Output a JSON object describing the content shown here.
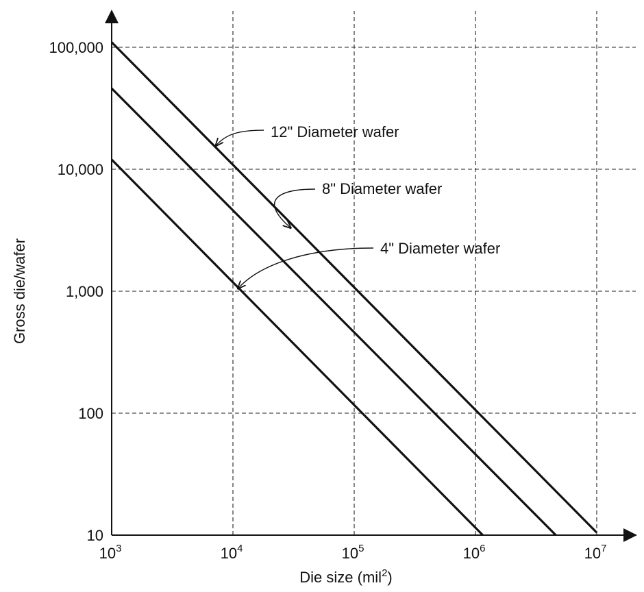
{
  "chart_data": {
    "type": "line",
    "x_scale": "log",
    "y_scale": "log",
    "xlabel_text": "Die size (mil",
    "xlabel_sup": "2",
    "xlabel_close": ")",
    "ylabel": "Gross die/wafer",
    "xlim": [
      1000,
      10000000
    ],
    "ylim": [
      10,
      100000
    ],
    "grid": true,
    "x_ticks": [
      {
        "base": "10",
        "exp": "3",
        "value": 1000
      },
      {
        "base": "10",
        "exp": "4",
        "value": 10000
      },
      {
        "base": "10",
        "exp": "5",
        "value": 100000
      },
      {
        "base": "10",
        "exp": "6",
        "value": 1000000
      },
      {
        "base": "10",
        "exp": "7",
        "value": 10000000
      }
    ],
    "y_ticks": [
      {
        "label": "10",
        "value": 10
      },
      {
        "label": "100",
        "value": 100
      },
      {
        "label": "1,000",
        "value": 1000
      },
      {
        "label": "10,000",
        "value": 10000
      },
      {
        "label": "100,000",
        "value": 100000
      }
    ],
    "series": [
      {
        "name": "12\" Diameter wafer",
        "x": [
          1000,
          10000000
        ],
        "y": [
          110000,
          10.5
        ],
        "label_at_x": 7200,
        "label_at_y": 15500
      },
      {
        "name": "8\" Diameter wafer",
        "x": [
          1000,
          4600000
        ],
        "y": [
          46000,
          10
        ],
        "label_at_x": 30000,
        "label_at_y": 3300
      },
      {
        "name": "4\" Diameter wafer",
        "x": [
          1000,
          1150000
        ],
        "y": [
          12000,
          10
        ],
        "label_at_x": 11000,
        "label_at_y": 1050
      }
    ]
  }
}
